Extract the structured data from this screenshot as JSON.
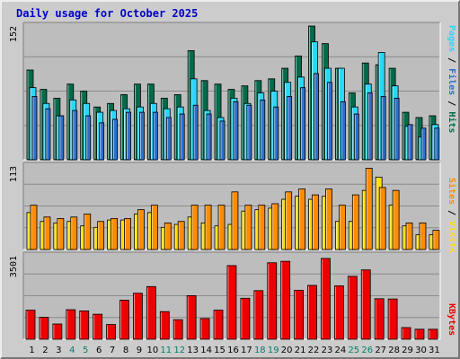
{
  "title": "Daily usage for October 2025",
  "colors": {
    "hits": "#006b4b",
    "pages": "#29d8f8",
    "files": "#2c6fcf",
    "visits": "#ffe000",
    "sites": "#ff8c00",
    "kbytes": "#ee0000",
    "weekend": "#00806b",
    "weekday": "#000000",
    "background": "#cccccc",
    "panel": "#bdbdbd"
  },
  "chart_data": [
    {
      "type": "bar",
      "categories": [
        "1",
        "2",
        "3",
        "4",
        "5",
        "6",
        "7",
        "8",
        "9",
        "10",
        "11",
        "12",
        "13",
        "14",
        "15",
        "16",
        "17",
        "18",
        "19",
        "20",
        "21",
        "22",
        "23",
        "24",
        "25",
        "26",
        "27",
        "28",
        "29",
        "30",
        "31"
      ],
      "weekend_days": [
        "4",
        "5",
        "11",
        "12",
        "18",
        "19",
        "25",
        "26"
      ],
      "ylim": [
        0,
        152
      ],
      "ytick_label": "152",
      "side_label": {
        "pages": "Pages",
        "files": "Files",
        "hits": "Hits",
        "sep": " / "
      },
      "series": [
        {
          "name": "Hits",
          "values": [
            102,
            80,
            70,
            86,
            78,
            60,
            64,
            74,
            86,
            86,
            70,
            74,
            124,
            90,
            86,
            80,
            84,
            90,
            92,
            104,
            118,
            152,
            132,
            104,
            76,
            110,
            108,
            104,
            54,
            48,
            50
          ]
        },
        {
          "name": "Files",
          "values": [
            72,
            58,
            50,
            56,
            50,
            42,
            46,
            54,
            54,
            54,
            48,
            52,
            62,
            52,
            44,
            66,
            62,
            68,
            60,
            72,
            82,
            98,
            88,
            66,
            52,
            76,
            72,
            70,
            40,
            36,
            36
          ]
        },
        {
          "name": "Pages",
          "values": [
            82,
            64,
            50,
            68,
            64,
            54,
            56,
            58,
            60,
            64,
            58,
            60,
            92,
            56,
            48,
            70,
            64,
            76,
            78,
            88,
            94,
            134,
            104,
            104,
            60,
            86,
            122,
            84,
            38,
            26,
            40
          ]
        }
      ]
    },
    {
      "type": "bar",
      "categories": [
        "1",
        "2",
        "3",
        "4",
        "5",
        "6",
        "7",
        "8",
        "9",
        "10",
        "11",
        "12",
        "13",
        "14",
        "15",
        "16",
        "17",
        "18",
        "19",
        "20",
        "21",
        "22",
        "23",
        "24",
        "25",
        "26",
        "27",
        "28",
        "29",
        "30",
        "31"
      ],
      "ylim": [
        0,
        113
      ],
      "ytick_label": "113",
      "side_label": {
        "sites": "Sites",
        "visits": "Visits",
        "sep": " / "
      },
      "series": [
        {
          "name": "Visits",
          "values": [
            50,
            38,
            36,
            38,
            32,
            30,
            40,
            40,
            48,
            50,
            30,
            34,
            44,
            36,
            32,
            34,
            52,
            54,
            56,
            68,
            72,
            68,
            72,
            38,
            38,
            80,
            98,
            60,
            32,
            20,
            20
          ]
        },
        {
          "name": "Sites",
          "values": [
            60,
            44,
            42,
            44,
            48,
            38,
            42,
            42,
            54,
            60,
            36,
            38,
            60,
            60,
            60,
            78,
            60,
            60,
            62,
            78,
            82,
            74,
            82,
            60,
            74,
            110,
            84,
            80,
            36,
            36,
            26
          ]
        }
      ]
    },
    {
      "type": "bar",
      "categories": [
        "1",
        "2",
        "3",
        "4",
        "5",
        "6",
        "7",
        "8",
        "9",
        "10",
        "11",
        "12",
        "13",
        "14",
        "15",
        "16",
        "17",
        "18",
        "19",
        "20",
        "21",
        "22",
        "23",
        "24",
        "25",
        "26",
        "27",
        "28",
        "29",
        "30",
        "31"
      ],
      "ylim": [
        0,
        3501
      ],
      "ytick_label": "3501",
      "side_label": {
        "kbytes": "KBytes"
      },
      "series": [
        {
          "name": "KBytes",
          "values": [
            1220,
            920,
            640,
            1240,
            1190,
            1050,
            620,
            1640,
            1930,
            2210,
            1160,
            820,
            1830,
            870,
            1220,
            3090,
            1720,
            2040,
            3210,
            3270,
            2050,
            2260,
            3390,
            2240,
            2640,
            2910,
            1700,
            1690,
            490,
            420,
            420
          ]
        }
      ]
    }
  ]
}
